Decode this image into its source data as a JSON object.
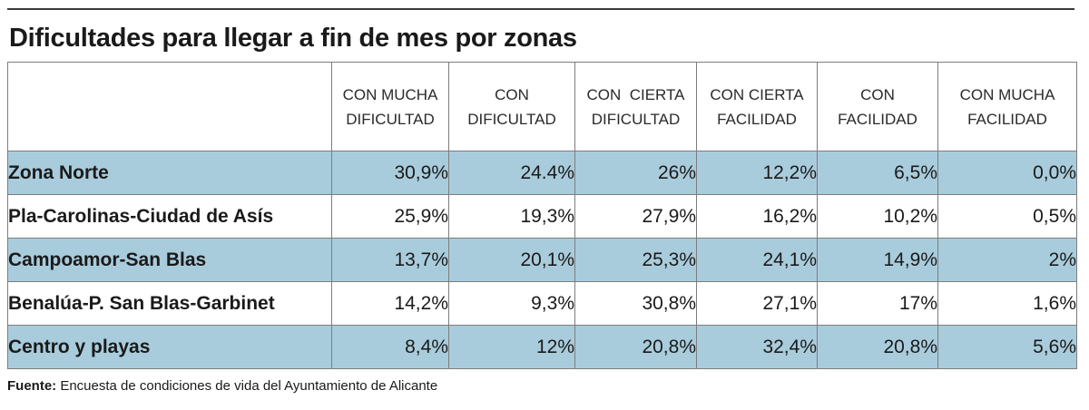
{
  "title": "Dificultades para llegar a fin de mes por zonas",
  "chart_data": {
    "type": "table",
    "title": "Dificultades para llegar a fin de mes por zonas",
    "columns": [
      [
        "CON MUCHA",
        "DIFICULTAD"
      ],
      [
        "CON",
        "DIFICULTAD"
      ],
      [
        "CON  CIERTA",
        "DIFICULTAD"
      ],
      [
        "CON CIERTA",
        "FACILIDAD"
      ],
      [
        "CON",
        "FACILIDAD"
      ],
      [
        "CON MUCHA",
        "FACILIDAD"
      ]
    ],
    "rows": [
      {
        "zone": "Zona Norte",
        "values": [
          "30,9%",
          "24.4%",
          "26%",
          "12,2%",
          "6,5%",
          "0,0%"
        ]
      },
      {
        "zone": "Pla-Carolinas-Ciudad de Asís",
        "values": [
          "25,9%",
          "19,3%",
          "27,9%",
          "16,2%",
          "10,2%",
          "0,5%"
        ]
      },
      {
        "zone": "Campoamor-San Blas",
        "values": [
          "13,7%",
          "20,1%",
          "25,3%",
          "24,1%",
          "14,9%",
          "2%"
        ]
      },
      {
        "zone": "Benalúa-P. San Blas-Garbinet",
        "values": [
          "14,2%",
          "9,3%",
          "30,8%",
          "27,1%",
          "17%",
          "1,6%"
        ]
      },
      {
        "zone": "Centro y playas",
        "values": [
          "8,4%",
          "12%",
          "20,8%",
          "32,4%",
          "20,8%",
          "5,6%"
        ]
      }
    ],
    "row_band_color": "#a9ccdc"
  },
  "source": {
    "label": "Fuente:",
    "text": " Encuesta de condiciones de vida del Ayuntamiento de Alicante"
  }
}
